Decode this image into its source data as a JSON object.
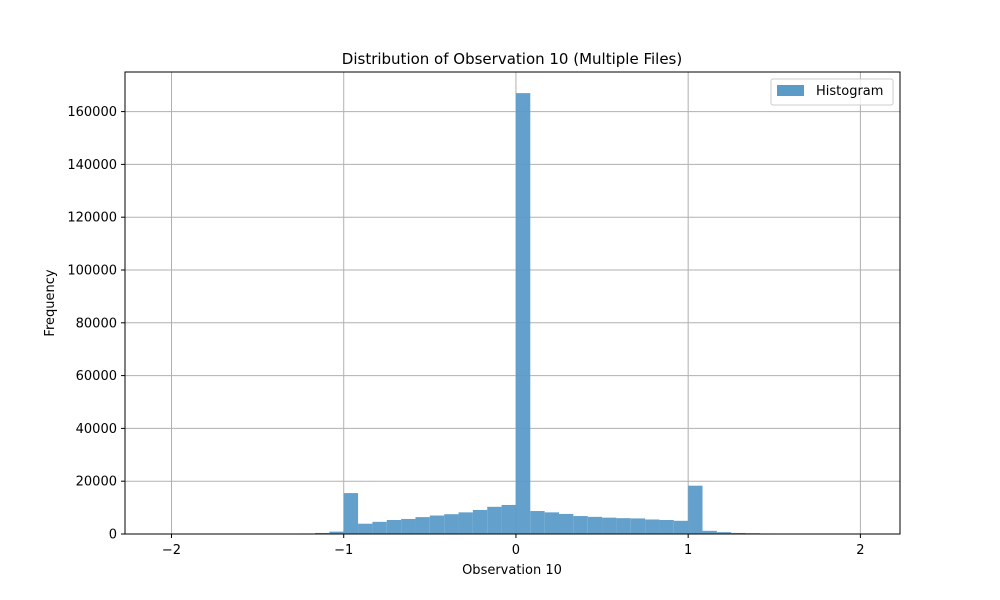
{
  "chart_data": {
    "type": "bar",
    "title": "Distribution of Observation 10 (Multiple Files)",
    "xlabel": "Observation 10",
    "ylabel": "Frequency",
    "xlim": [
      -2.27,
      2.23
    ],
    "ylim": [
      0,
      175000
    ],
    "xticks": [
      -2,
      -1,
      0,
      1,
      2
    ],
    "xtick_labels": [
      "−2",
      "−1",
      "0",
      "1",
      "2"
    ],
    "yticks": [
      0,
      20000,
      40000,
      60000,
      80000,
      100000,
      120000,
      140000,
      160000
    ],
    "ytick_labels": [
      "0",
      "20000",
      "40000",
      "60000",
      "80000",
      "100000",
      "120000",
      "140000",
      "160000"
    ],
    "grid": true,
    "legend": {
      "position": "top-right",
      "entries": [
        "Histogram"
      ]
    },
    "series": [
      {
        "name": "Histogram",
        "color": "#5b9bc8",
        "bin_width": 0.0833,
        "bins": [
          {
            "x0": -1.25,
            "value": 200
          },
          {
            "x0": -1.1667,
            "value": 400
          },
          {
            "x0": -1.0833,
            "value": 900
          },
          {
            "x0": -1.0,
            "value": 15500
          },
          {
            "x0": -0.9167,
            "value": 3900
          },
          {
            "x0": -0.8333,
            "value": 4600
          },
          {
            "x0": -0.75,
            "value": 5300
          },
          {
            "x0": -0.6667,
            "value": 5700
          },
          {
            "x0": -0.5833,
            "value": 6400
          },
          {
            "x0": -0.5,
            "value": 7000
          },
          {
            "x0": -0.4167,
            "value": 7500
          },
          {
            "x0": -0.3333,
            "value": 8200
          },
          {
            "x0": -0.25,
            "value": 9100
          },
          {
            "x0": -0.1667,
            "value": 10300
          },
          {
            "x0": -0.0833,
            "value": 11000
          },
          {
            "x0": 0.0,
            "value": 167000
          },
          {
            "x0": 0.0833,
            "value": 8700
          },
          {
            "x0": 0.1667,
            "value": 8200
          },
          {
            "x0": 0.25,
            "value": 7600
          },
          {
            "x0": 0.3333,
            "value": 6800
          },
          {
            "x0": 0.4167,
            "value": 6500
          },
          {
            "x0": 0.5,
            "value": 6200
          },
          {
            "x0": 0.5833,
            "value": 6000
          },
          {
            "x0": 0.6667,
            "value": 5900
          },
          {
            "x0": 0.75,
            "value": 5500
          },
          {
            "x0": 0.8333,
            "value": 5300
          },
          {
            "x0": 0.9167,
            "value": 5000
          },
          {
            "x0": 1.0,
            "value": 18300
          },
          {
            "x0": 1.0833,
            "value": 1200
          },
          {
            "x0": 1.1667,
            "value": 700
          },
          {
            "x0": 1.25,
            "value": 400
          },
          {
            "x0": 1.3333,
            "value": 300
          },
          {
            "x0": 1.4167,
            "value": 200
          }
        ]
      }
    ]
  },
  "colors": {
    "bar": "#5b9bc8",
    "grid": "#b0b0b0",
    "axis": "#000000"
  }
}
